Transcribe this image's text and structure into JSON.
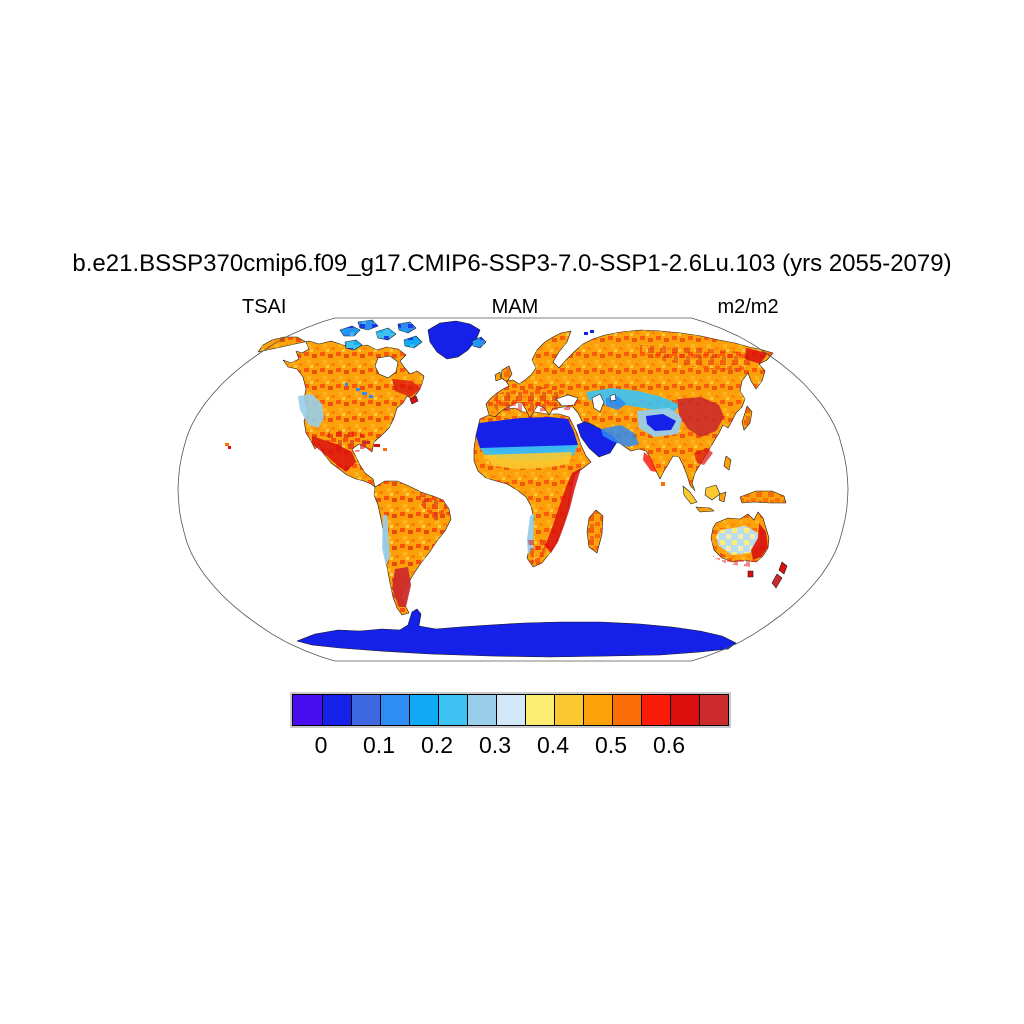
{
  "title": "b.e21.BSSP370cmip6.f09_g17.CMIP6-SSP3-7.0-SSP1-2.6Lu.103 (yrs 2055-2079)",
  "subtitle": {
    "left": "TSAI",
    "center": "MAM",
    "right": "m2/m2"
  },
  "colorbar": {
    "colors": [
      "#4A0DF2",
      "#1520E8",
      "#3E68E0",
      "#2E8CF5",
      "#0FA9F6",
      "#3EC2F2",
      "#98CEEA",
      "#D2E7F8",
      "#FBEE73",
      "#FBC92F",
      "#FCA109",
      "#FB6D07",
      "#FA1C08",
      "#DC0E0E",
      "#CC2B2B"
    ],
    "ticks": [
      {
        "label": "0",
        "boundary": 1
      },
      {
        "label": "0.1",
        "boundary": 3
      },
      {
        "label": "0.2",
        "boundary": 5
      },
      {
        "label": "0.3",
        "boundary": 7
      },
      {
        "label": "0.4",
        "boundary": 9
      },
      {
        "label": "0.5",
        "boundary": 11
      },
      {
        "label": "0.6",
        "boundary": 13
      }
    ]
  },
  "chart_data": {
    "type": "heatmap",
    "subtype": "filled-contour-world-map",
    "projection": "Robinson",
    "title": "b.e21.BSSP370cmip6.f09_g17.CMIP6-SSP3-7.0-SSP1-2.6Lu.103 (yrs 2055-2079)",
    "variable": "TSAI",
    "season": "MAM",
    "units": "m2/m2",
    "levels": [
      0,
      0.05,
      0.1,
      0.15,
      0.2,
      0.25,
      0.3,
      0.35,
      0.4,
      0.45,
      0.5,
      0.55,
      0.6,
      0.65
    ],
    "palette": [
      "#4A0DF2",
      "#1520E8",
      "#3E68E0",
      "#2E8CF5",
      "#0FA9F6",
      "#3EC2F2",
      "#98CEEA",
      "#D2E7F8",
      "#FBEE73",
      "#FBC92F",
      "#FCA109",
      "#FB6D07",
      "#FA1C08",
      "#DC0E0E",
      "#CC2B2B"
    ],
    "tick_labels": [
      "0",
      "0.1",
      "0.2",
      "0.3",
      "0.4",
      "0.5",
      "0.6"
    ],
    "legend_position": "bottom",
    "grid": false,
    "region_values_m2_per_m2": [
      {
        "region": "Greenland",
        "value": "< 0.05"
      },
      {
        "region": "Antarctica",
        "value": "< 0.05"
      },
      {
        "region": "Sahara Desert",
        "value": "< 0.05"
      },
      {
        "region": "Arabian Peninsula",
        "value": "< 0.05"
      },
      {
        "region": "Canadian Arctic islands",
        "value": "0.05 - 0.25"
      },
      {
        "region": "Central Asia / Caspian steppe",
        "value": "0.1 - 0.3"
      },
      {
        "region": "Tibetan Plateau",
        "value": "< 0.15"
      },
      {
        "region": "North America temperate",
        "value": "0.45 - 0.6"
      },
      {
        "region": "Eastern US / Quebec",
        "value": "> 0.6"
      },
      {
        "region": "Western US mountains",
        "value": "0.25 - 0.35"
      },
      {
        "region": "Mexico / Central America / Caribbean",
        "value": "> 0.6"
      },
      {
        "region": "Amazon / central South America",
        "value": "0.5 - 0.6"
      },
      {
        "region": "Patagonia / Andes south",
        "value": "> 0.6"
      },
      {
        "region": "Sahel transition band",
        "value": "0.3 - 0.5"
      },
      {
        "region": "Central Africa",
        "value": "0.5 - 0.55"
      },
      {
        "region": "East and Southern Africa",
        "value": "> 0.6"
      },
      {
        "region": "Europe",
        "value": "0.5 - 0.65"
      },
      {
        "region": "Siberia boreal",
        "value": "0.5 - 0.6"
      },
      {
        "region": "Mongolia / North China",
        "value": "> 0.6"
      },
      {
        "region": "India",
        "value": "0.5 - 0.65"
      },
      {
        "region": "Southeast Asia",
        "value": "0.5 - 0.65"
      },
      {
        "region": "Maritime continent",
        "value": "0.4 - 0.55"
      },
      {
        "region": "Australia interior",
        "value": "0.25 - 0.4"
      },
      {
        "region": "Australia east coast",
        "value": "> 0.6"
      },
      {
        "region": "New Zealand",
        "value": "> 0.6"
      }
    ]
  },
  "map": {
    "region_fills": {
      "na-mainland": "#FCA109",
      "arctic-island-1": "#2E8CF5",
      "arctic-island-2": "#2E8CF5",
      "arctic-island-3": "#3EC2F2",
      "arctic-island-4": "#2E8CF5",
      "arctic-island-5": "#0FA9F6",
      "arctic-island-6": "#3EC2F2",
      "greenland": "#1520E8",
      "iceland": "#2E8CF5",
      "hudson-bay": "#FFFFFF",
      "great-lake": "#2E8CF5",
      "newfoundland": "#DC0E0E",
      "quebec-red": "#DC0E0E",
      "us-west-cool": "#98CEEA",
      "mexico-red": "#DC0E0E",
      "cuba": "#CC2B2B",
      "hispaniola": "#DC0E0E",
      "caribbean-dot": "#FB6D07",
      "hawaii": "#FB6D07",
      "hawaii-2": "#DC0E0E",
      "south-america": "#FCA109",
      "andes-sliver": "#98CEEA",
      "patagonia-red": "#CC2B2B",
      "africa": "#FCA109",
      "sahara": "#1520E8",
      "sahara-fringe": "#3EC2F2",
      "sahel": "#FBC92F",
      "africa-east-red": "#DC0E0E",
      "namibia-sliver": "#98CEEA",
      "madagascar": "#FCA109",
      "arabia": "#1520E8",
      "eurasia": "#FCA109",
      "uk": "#FCA109",
      "ireland": "#FCA109",
      "svalbard": "#1520E8",
      "black-sea": "#FFFFFF",
      "caspian-sea": "#FFFFFF",
      "aral-sea": "#FFFFFF",
      "kazakh-cool": "#3EC2F2",
      "caspian-blue": "#2E8CF5",
      "tibet-fringe": "#98CEEA",
      "tibet-blue": "#1520E8",
      "iran-cool": "#2E8CF5",
      "mongolia-red": "#CC2B2B",
      "chukotka-red": "#DC0E0E",
      "india-west-red": "#FA1C08",
      "se-asia-red": "#DC0E0E",
      "sri-lanka": "#FB6D07",
      "japan": "#FCA109",
      "philippines": "#FCA109",
      "borneo": "#FBC92F",
      "sumatra": "#FBC92F",
      "java": "#FCA109",
      "sulawesi": "#FCA109",
      "new-guinea": "#FCA109",
      "australia": "#FCA109",
      "australia-interior": "#BBDCEF",
      "australia-east-red": "#DC0E0E",
      "tasmania": "#DC0E0E",
      "new-zealand-north": "#DC0E0E",
      "new-zealand-south": "#CC2B2B",
      "antarctica": "#1520E8"
    }
  }
}
